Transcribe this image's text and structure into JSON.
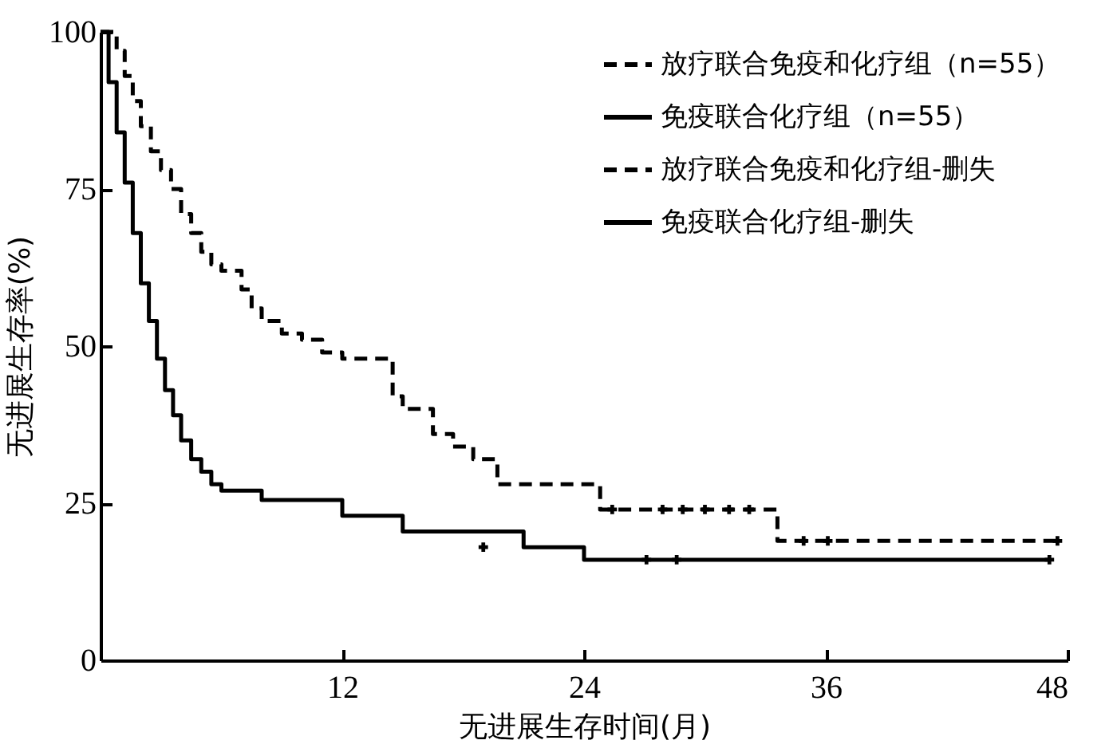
{
  "chart_data": {
    "type": "step",
    "xlabel": "无进展生存时间(月)",
    "ylabel": "无进展生存率(%)",
    "xlim": [
      0,
      48
    ],
    "xticks": [
      12,
      24,
      36,
      48
    ],
    "ylim": [
      0,
      100
    ],
    "yticks": [
      0,
      25,
      50,
      75,
      100
    ],
    "grid": false,
    "legend": "top right",
    "series": [
      {
        "name": "放疗联合免疫和化疗组（n=55）",
        "color": "#000000",
        "line_style": "dashed",
        "x": [
          0,
          0.8,
          1.2,
          1.6,
          2,
          2.5,
          3,
          3.5,
          4,
          4.5,
          5,
          5.5,
          6,
          7,
          7.5,
          8,
          9,
          10,
          11,
          12,
          14,
          14.5,
          15,
          16.5,
          17.5,
          18.5,
          19.7,
          24.8,
          33.6,
          47.5
        ],
        "values": [
          100,
          97,
          93,
          89,
          85,
          81,
          78,
          75,
          71,
          68,
          65,
          63,
          62,
          59,
          56,
          54,
          52,
          51,
          49,
          48,
          48,
          42,
          40,
          36,
          34,
          32,
          28,
          24,
          19,
          19
        ]
      },
      {
        "name": "免疫联合化疗组（n=55）",
        "color": "#000000",
        "line_style": "solid",
        "x": [
          0,
          0.4,
          0.8,
          1.2,
          1.6,
          2,
          2.4,
          2.8,
          3.2,
          3.6,
          4,
          4.5,
          5,
          5.5,
          6,
          7,
          8,
          12,
          15,
          21,
          24,
          47.1
        ],
        "values": [
          100,
          92,
          84,
          76,
          68,
          60,
          54,
          48,
          43,
          39,
          35,
          32,
          30,
          28,
          27,
          27,
          25.5,
          23,
          20.5,
          18,
          16,
          16
        ]
      },
      {
        "name": "放疗联合免疫和化疗组-删失",
        "type": "scatter",
        "marker": "cross",
        "color": "#000000",
        "line_style": "dashed",
        "x": [
          25.4,
          27.9,
          28.9,
          30,
          31.2,
          32.2,
          34.9,
          36.1,
          47.5
        ],
        "values": [
          24,
          24,
          24,
          24,
          24,
          24,
          19,
          19,
          19
        ]
      },
      {
        "name": "免疫联合化疗组-删失",
        "type": "scatter",
        "marker": "cross",
        "color": "#000000",
        "line_style": "solid",
        "x": [
          19,
          27.1,
          28.6,
          47.1
        ],
        "values": [
          18,
          16,
          16,
          16
        ]
      }
    ]
  }
}
